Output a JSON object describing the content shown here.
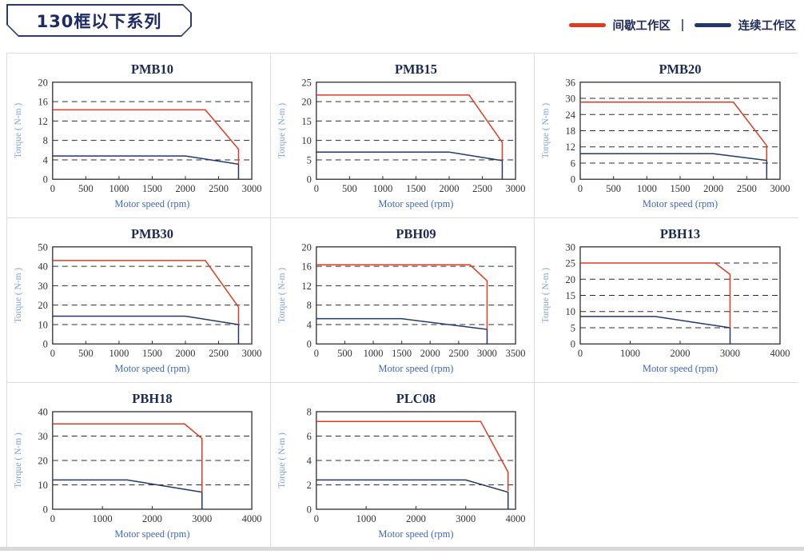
{
  "header": {
    "title": "130框以下系列",
    "legend": [
      {
        "label": "间歇工作区",
        "colorKey": "red"
      },
      {
        "label": "连续工作区",
        "colorKey": "navy"
      }
    ]
  },
  "colors": {
    "red": "#dd3a20",
    "navy": "#20386a",
    "axis": "#2d2d2d",
    "grid": "#2d2d2d",
    "title": "#1c2a52",
    "tick": "#333333",
    "xlabel": "#3f68c2",
    "ylabel": "#7ba0d4"
  },
  "chart_data": [
    {
      "type": "line",
      "title": "PMB10",
      "xlabel": "Motor speed (rpm)",
      "ylabel": "Torque ( N-m )",
      "xlim": [
        0,
        3000
      ],
      "xticks": [
        0,
        500,
        1000,
        1500,
        2000,
        2500,
        3000
      ],
      "ylim": [
        0,
        20
      ],
      "yticks": [
        0,
        4,
        8,
        12,
        16,
        20
      ],
      "series": [
        {
          "name": "连续工作区",
          "colorKey": "navy",
          "points": [
            [
              0,
              4.8
            ],
            [
              2000,
              4.8
            ],
            [
              2800,
              3.1
            ],
            [
              2800,
              0
            ]
          ]
        },
        {
          "name": "间歇工作区",
          "colorKey": "red",
          "points": [
            [
              0,
              14.3
            ],
            [
              2300,
              14.3
            ],
            [
              2800,
              6.2
            ],
            [
              2800,
              3.1
            ]
          ]
        }
      ]
    },
    {
      "type": "line",
      "title": "PMB15",
      "xlabel": "Motor speed (rpm)",
      "ylabel": "Torque ( N-m )",
      "xlim": [
        0,
        3000
      ],
      "xticks": [
        0,
        500,
        1000,
        1500,
        2000,
        2500,
        3000
      ],
      "ylim": [
        0,
        25
      ],
      "yticks": [
        0,
        5,
        10,
        15,
        20,
        25
      ],
      "series": [
        {
          "name": "连续工作区",
          "colorKey": "navy",
          "points": [
            [
              0,
              7
            ],
            [
              2000,
              7
            ],
            [
              2800,
              4.8
            ],
            [
              2800,
              0
            ]
          ]
        },
        {
          "name": "间歇工作区",
          "colorKey": "red",
          "points": [
            [
              0,
              21.7
            ],
            [
              2300,
              21.7
            ],
            [
              2800,
              9.5
            ],
            [
              2800,
              4.8
            ]
          ]
        }
      ]
    },
    {
      "type": "line",
      "title": "PMB20",
      "xlabel": "Motor speed (rpm)",
      "ylabel": "Torque ( N-m )",
      "xlim": [
        0,
        3000
      ],
      "xticks": [
        0,
        500,
        1000,
        1500,
        2000,
        2500,
        3000
      ],
      "ylim": [
        0,
        36
      ],
      "yticks": [
        0,
        6,
        12,
        18,
        24,
        30,
        36
      ],
      "series": [
        {
          "name": "连续工作区",
          "colorKey": "navy",
          "points": [
            [
              0,
              9.5
            ],
            [
              2000,
              9.5
            ],
            [
              2800,
              7
            ],
            [
              2800,
              0
            ]
          ]
        },
        {
          "name": "间歇工作区",
          "colorKey": "red",
          "points": [
            [
              0,
              28.6
            ],
            [
              2300,
              28.6
            ],
            [
              2800,
              12.5
            ],
            [
              2800,
              7
            ]
          ]
        }
      ]
    },
    {
      "type": "line",
      "title": "PMB30",
      "xlabel": "Motor speed (rpm)",
      "ylabel": "Torque ( N-m )",
      "xlim": [
        0,
        3000
      ],
      "xticks": [
        0,
        500,
        1000,
        1500,
        2000,
        2500,
        3000
      ],
      "ylim": [
        0,
        50
      ],
      "yticks": [
        0,
        10,
        20,
        30,
        40,
        50
      ],
      "series": [
        {
          "name": "连续工作区",
          "colorKey": "navy",
          "points": [
            [
              0,
              14.3
            ],
            [
              2000,
              14.3
            ],
            [
              2800,
              10
            ],
            [
              2800,
              0
            ]
          ]
        },
        {
          "name": "间歇工作区",
          "colorKey": "red",
          "points": [
            [
              0,
              43
            ],
            [
              2300,
              43
            ],
            [
              2800,
              19
            ],
            [
              2800,
              10
            ]
          ]
        }
      ]
    },
    {
      "type": "line",
      "title": "PBH09",
      "xlabel": "Motor speed (rpm)",
      "ylabel": "Torque ( N-m )",
      "xlim": [
        0,
        3500
      ],
      "xticks": [
        0,
        500,
        1000,
        1500,
        2000,
        2500,
        3000,
        3500
      ],
      "ylim": [
        0,
        20
      ],
      "yticks": [
        0,
        4,
        8,
        12,
        16,
        20
      ],
      "series": [
        {
          "name": "连续工作区",
          "colorKey": "navy",
          "points": [
            [
              0,
              5.2
            ],
            [
              1500,
              5.2
            ],
            [
              3000,
              3
            ],
            [
              3000,
              0
            ]
          ]
        },
        {
          "name": "间歇工作区",
          "colorKey": "red",
          "points": [
            [
              0,
              16.3
            ],
            [
              2700,
              16.3
            ],
            [
              3000,
              13
            ],
            [
              3000,
              3
            ]
          ]
        }
      ]
    },
    {
      "type": "line",
      "title": "PBH13",
      "xlabel": "Motor speed (rpm)",
      "ylabel": "Torque ( N-m )",
      "xlim": [
        0,
        4000
      ],
      "xticks": [
        0,
        1000,
        2000,
        3000,
        4000
      ],
      "ylim": [
        0,
        30
      ],
      "yticks": [
        0,
        5,
        10,
        15,
        20,
        25,
        30
      ],
      "series": [
        {
          "name": "连续工作区",
          "colorKey": "navy",
          "points": [
            [
              0,
              8.5
            ],
            [
              1500,
              8.5
            ],
            [
              3000,
              5
            ],
            [
              3000,
              0
            ]
          ]
        },
        {
          "name": "间歇工作区",
          "colorKey": "red",
          "points": [
            [
              0,
              25
            ],
            [
              2700,
              25
            ],
            [
              3000,
              21.5
            ],
            [
              3000,
              5
            ]
          ]
        }
      ]
    },
    {
      "type": "line",
      "title": "PBH18",
      "xlabel": "Motor speed (rpm)",
      "ylabel": "Torque ( N-m )",
      "xlim": [
        0,
        4000
      ],
      "xticks": [
        0,
        1000,
        2000,
        3000,
        4000
      ],
      "ylim": [
        0,
        40
      ],
      "yticks": [
        0,
        10,
        20,
        30,
        40
      ],
      "series": [
        {
          "name": "连续工作区",
          "colorKey": "navy",
          "points": [
            [
              0,
              12
            ],
            [
              1500,
              12
            ],
            [
              3000,
              7
            ],
            [
              3000,
              0
            ]
          ]
        },
        {
          "name": "间歇工作区",
          "colorKey": "red",
          "points": [
            [
              0,
              35
            ],
            [
              2650,
              35
            ],
            [
              3000,
              29
            ],
            [
              3000,
              7
            ]
          ]
        }
      ]
    },
    {
      "type": "line",
      "title": "PLC08",
      "xlabel": "Motor speed (rpm)",
      "ylabel": "Torque ( N-m )",
      "xlim": [
        0,
        4000
      ],
      "xticks": [
        0,
        1000,
        2000,
        3000,
        4000
      ],
      "ylim": [
        0,
        8
      ],
      "yticks": [
        0,
        2,
        4,
        6,
        8
      ],
      "series": [
        {
          "name": "连续工作区",
          "colorKey": "navy",
          "points": [
            [
              0,
              2.4
            ],
            [
              3000,
              2.4
            ],
            [
              3850,
              1.4
            ],
            [
              3850,
              0
            ]
          ]
        },
        {
          "name": "间歇工作区",
          "colorKey": "red",
          "points": [
            [
              0,
              7.2
            ],
            [
              3300,
              7.2
            ],
            [
              3850,
              3.05
            ],
            [
              3850,
              1.5
            ]
          ]
        }
      ]
    }
  ]
}
